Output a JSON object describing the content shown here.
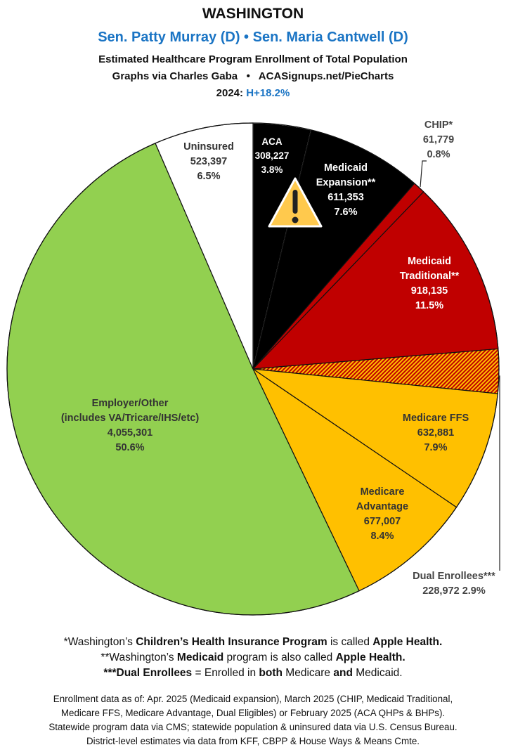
{
  "header": {
    "state": "WASHINGTON",
    "senators": "Sen. Patty Murray (D) • Sen. Maria Cantwell (D)",
    "subtitle": "Estimated Healthcare Program Enrollment of Total Population",
    "credit": "Graphs via Charles Gaba   •   ACASignups.net/PieCharts",
    "year_label": "2024:",
    "year_value": "H+18.2%"
  },
  "chart_data": {
    "type": "pie",
    "start": "top",
    "direction": "clockwise",
    "slices": [
      {
        "label": "ACA",
        "value": "308,227",
        "percent": 3.8,
        "percent_label": "3.8%",
        "color": "#000000"
      },
      {
        "label": "Medicaid Expansion**",
        "value": "611,353",
        "percent": 7.6,
        "percent_label": "7.6%",
        "color": "#000000",
        "icon": "warning-icon"
      },
      {
        "label": "CHIP*",
        "value": "61,779",
        "percent": 0.8,
        "percent_label": "0.8%",
        "color": "#c00000"
      },
      {
        "label": "Medicaid Traditional**",
        "value": "918,135",
        "percent": 11.5,
        "percent_label": "11.5%",
        "color": "#c00000"
      },
      {
        "label": "Dual Enrollees***",
        "value": "228,972",
        "percent": 2.9,
        "percent_label": "2.9%",
        "color": "hatched #c00000/#ffc000"
      },
      {
        "label": "Medicare FFS",
        "value": "632,881",
        "percent": 7.9,
        "percent_label": "7.9%",
        "color": "#ffc000"
      },
      {
        "label": "Medicare Advantage",
        "value": "677,007",
        "percent": 8.4,
        "percent_label": "8.4%",
        "color": "#ffc000"
      },
      {
        "label": "Employer/Other",
        "sublabel": "(includes VA/Tricare/IHS/etc)",
        "value": "4,055,301",
        "percent": 50.6,
        "percent_label": "50.6%",
        "color": "#92d050"
      },
      {
        "label": "Uninsured",
        "value": "523,397",
        "percent": 6.5,
        "percent_label": "6.5%",
        "color": "#ffffff"
      }
    ]
  },
  "notes": [
    [
      {
        "t": "*Washington’s "
      },
      {
        "t": "Children’s Health Insurance Program",
        "b": true
      },
      {
        "t": " is called "
      },
      {
        "t": "Apple Health.",
        "b": true
      }
    ],
    [
      {
        "t": "**Washington’s "
      },
      {
        "t": "Medicaid",
        "b": true
      },
      {
        "t": " program is also called "
      },
      {
        "t": "Apple Health.",
        "b": true
      }
    ],
    [
      {
        "t": "***Dual Enrollees",
        "b": true
      },
      {
        "t": " = Enrolled in "
      },
      {
        "t": "both",
        "b": true
      },
      {
        "t": " Medicare "
      },
      {
        "t": "and",
        "b": true
      },
      {
        "t": " Medicaid."
      }
    ]
  ],
  "sources": [
    "Enrollment data as of: Apr. 2025 (Medicaid expansion), March 2025 (CHIP, Medicaid Traditional,",
    "Medicare FFS, Medicare Advantage, Dual Eligibles) or February 2025 (ACA QHPs & BHPs).",
    "Statewide program data via CMS; statewide population & uninsured data via U.S. Census Bureau.",
    "District-level estimates via data from KFF, CBPP & House Ways & Means Cmte."
  ]
}
